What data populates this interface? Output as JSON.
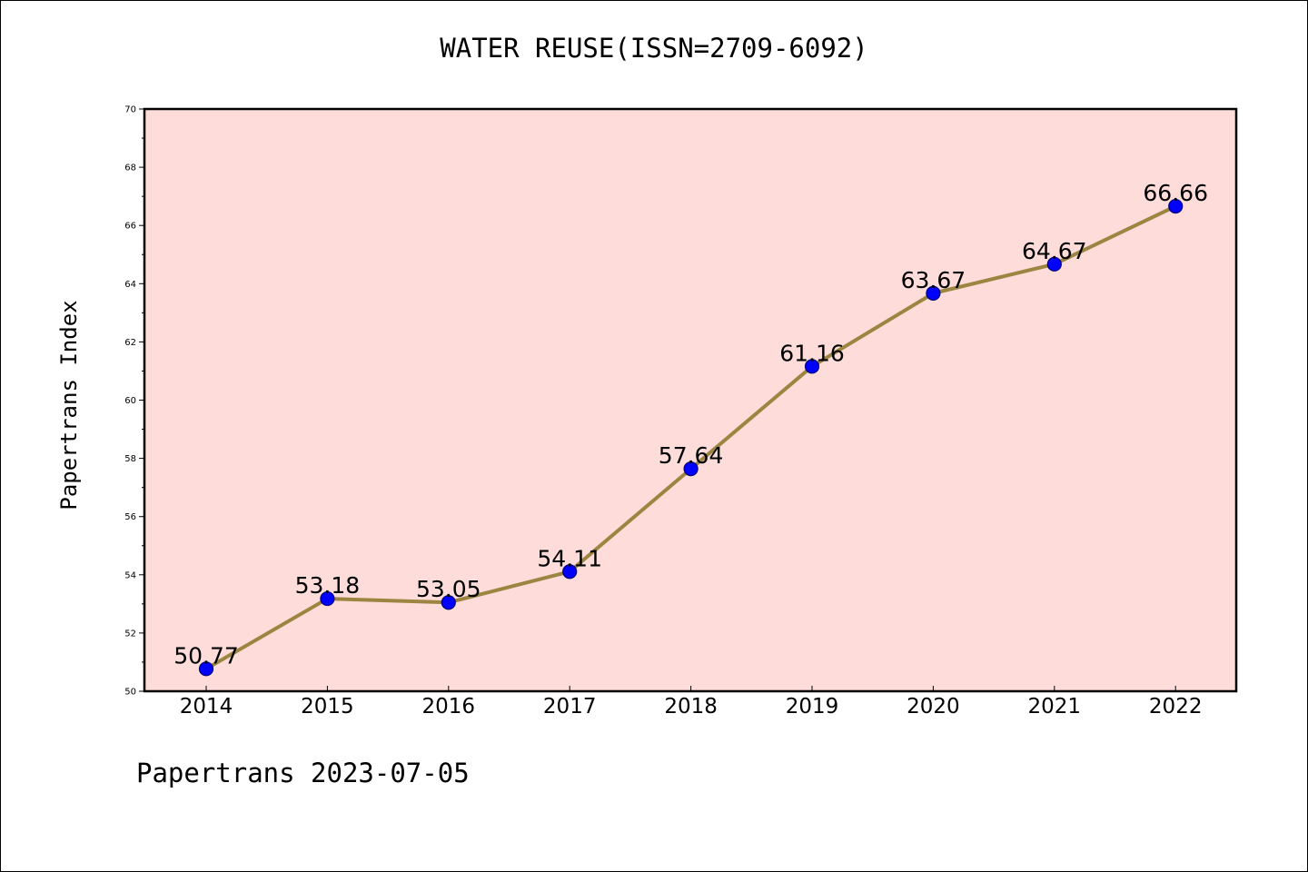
{
  "chart_data": {
    "type": "line",
    "title": "WATER REUSE(ISSN=2709-6092)",
    "xlabel": "",
    "ylabel": "Papertrans Index",
    "categories": [
      "2014",
      "2015",
      "2016",
      "2017",
      "2018",
      "2019",
      "2020",
      "2021",
      "2022"
    ],
    "series": [
      {
        "values": [
          50.77,
          53.18,
          53.05,
          54.11,
          57.64,
          61.16,
          63.67,
          64.67,
          66.66
        ],
        "labels": [
          "50.77",
          "53.18",
          "53.05",
          "54.11",
          "57.64",
          "61.16",
          "63.67",
          "64.67",
          "66.66"
        ]
      }
    ],
    "ylim": [
      50,
      70
    ],
    "yticks": [
      "50",
      "52",
      "54",
      "56",
      "58",
      "60",
      "62",
      "64",
      "66",
      "68",
      "70"
    ],
    "grid": false,
    "legend": "none",
    "colors": {
      "plot_background": "#fddcd9",
      "line": "#9b8540",
      "marker_fill": "#0000ff",
      "marker_edge": "#00007a",
      "axis": "#000000"
    }
  },
  "footer": {
    "text": "Papertrans 2023-07-05"
  }
}
